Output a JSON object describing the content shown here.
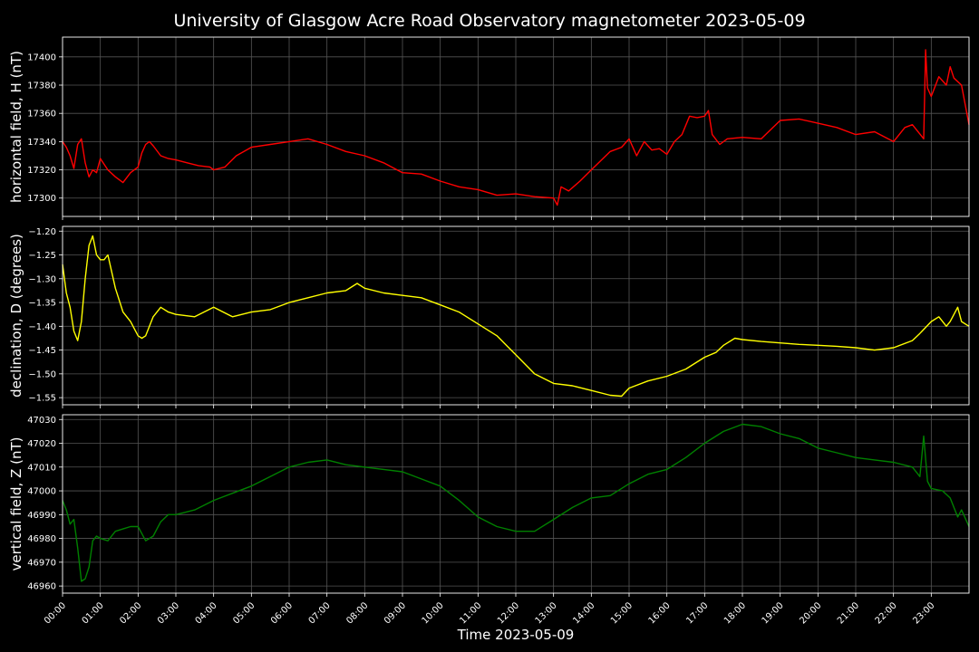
{
  "chart_data": {
    "type": "line",
    "title": "University of Glasgow Acre Road Observatory magnetometer 2023-05-09",
    "xlabel": "Time 2023-05-09",
    "x_ticks": [
      "00:00",
      "01:00",
      "02:00",
      "03:00",
      "04:00",
      "05:00",
      "06:00",
      "07:00",
      "08:00",
      "09:00",
      "10:00",
      "11:00",
      "12:00",
      "13:00",
      "14:00",
      "15:00",
      "16:00",
      "17:00",
      "18:00",
      "19:00",
      "20:00",
      "21:00",
      "22:00",
      "23:00"
    ],
    "xlim_hours": [
      0,
      24
    ],
    "grid": true,
    "background": "#000000",
    "panels": [
      {
        "ylabel": "horizontal field, H (nT)",
        "color": "#ff0000",
        "ylim": [
          17287,
          17414
        ],
        "yticks": [
          "17300",
          "17320",
          "17340",
          "17360",
          "17380",
          "17400"
        ],
        "ytick_values": [
          17300,
          17320,
          17340,
          17360,
          17380,
          17400
        ],
        "series": {
          "x": [
            0,
            0.1,
            0.2,
            0.3,
            0.4,
            0.5,
            0.6,
            0.7,
            0.8,
            0.9,
            1.0,
            1.2,
            1.4,
            1.6,
            1.8,
            2.0,
            2.1,
            2.2,
            2.3,
            2.4,
            2.6,
            2.8,
            3.0,
            3.3,
            3.6,
            3.9,
            4.0,
            4.3,
            4.6,
            5.0,
            5.5,
            6.0,
            6.5,
            7.0,
            7.5,
            8.0,
            8.5,
            9.0,
            9.5,
            10.0,
            10.5,
            11.0,
            11.5,
            12.0,
            12.5,
            13.0,
            13.1,
            13.2,
            13.4,
            13.7,
            14.0,
            14.5,
            14.8,
            15.0,
            15.2,
            15.4,
            15.6,
            15.8,
            16.0,
            16.2,
            16.4,
            16.6,
            16.8,
            17.0,
            17.1,
            17.2,
            17.4,
            17.6,
            18.0,
            18.5,
            19.0,
            19.5,
            20.0,
            20.5,
            21.0,
            21.5,
            22.0,
            22.3,
            22.5,
            22.8,
            22.85,
            22.9,
            23.0,
            23.2,
            23.4,
            23.5,
            23.6,
            23.8,
            24.0
          ],
          "values": [
            17340,
            17336,
            17330,
            17321,
            17338,
            17342,
            17325,
            17315,
            17320,
            17318,
            17328,
            17320,
            17315,
            17311,
            17318,
            17322,
            17332,
            17338,
            17340,
            17337,
            17330,
            17328,
            17327,
            17325,
            17323,
            17322,
            17320,
            17322,
            17330,
            17336,
            17338,
            17340,
            17342,
            17338,
            17333,
            17330,
            17325,
            17318,
            17317,
            17312,
            17308,
            17306,
            17302,
            17303,
            17301,
            17300,
            17295,
            17308,
            17305,
            17312,
            17320,
            17333,
            17336,
            17342,
            17330,
            17340,
            17334,
            17335,
            17331,
            17340,
            17345,
            17358,
            17357,
            17358,
            17362,
            17345,
            17338,
            17342,
            17343,
            17342,
            17355,
            17356,
            17353,
            17350,
            17345,
            17347,
            17340,
            17350,
            17352,
            17342,
            17405,
            17378,
            17372,
            17386,
            17380,
            17393,
            17385,
            17380,
            17352
          ]
        }
      },
      {
        "ylabel": "declination, D (degrees)",
        "color": "#ffff00",
        "ylim": [
          -1.565,
          -1.19
        ],
        "yticks": [
          "−1.55",
          "−1.50",
          "−1.45",
          "−1.40",
          "−1.35",
          "−1.30",
          "−1.25",
          "−1.20"
        ],
        "ytick_values": [
          -1.55,
          -1.5,
          -1.45,
          -1.4,
          -1.35,
          -1.3,
          -1.25,
          -1.2
        ],
        "series": {
          "x": [
            0,
            0.1,
            0.2,
            0.3,
            0.4,
            0.5,
            0.6,
            0.7,
            0.8,
            0.9,
            1.0,
            1.1,
            1.2,
            1.4,
            1.6,
            1.8,
            2.0,
            2.1,
            2.2,
            2.4,
            2.6,
            2.8,
            3.0,
            3.5,
            4.0,
            4.5,
            5.0,
            5.5,
            6.0,
            6.5,
            7.0,
            7.5,
            7.8,
            8.0,
            8.5,
            9.0,
            9.5,
            10.0,
            10.5,
            11.0,
            11.5,
            12.0,
            12.5,
            13.0,
            13.5,
            14.0,
            14.5,
            14.8,
            15.0,
            15.5,
            16.0,
            16.5,
            17.0,
            17.3,
            17.5,
            17.8,
            18.0,
            18.5,
            19.0,
            19.5,
            20.0,
            20.5,
            21.0,
            21.5,
            22.0,
            22.5,
            22.7,
            23.0,
            23.2,
            23.4,
            23.5,
            23.7,
            23.8,
            24.0
          ],
          "values": [
            -1.27,
            -1.33,
            -1.36,
            -1.41,
            -1.43,
            -1.39,
            -1.3,
            -1.23,
            -1.21,
            -1.25,
            -1.26,
            -1.26,
            -1.25,
            -1.32,
            -1.37,
            -1.39,
            -1.42,
            -1.425,
            -1.42,
            -1.38,
            -1.36,
            -1.37,
            -1.375,
            -1.38,
            -1.36,
            -1.38,
            -1.37,
            -1.365,
            -1.35,
            -1.34,
            -1.33,
            -1.325,
            -1.31,
            -1.32,
            -1.33,
            -1.335,
            -1.34,
            -1.355,
            -1.37,
            -1.395,
            -1.42,
            -1.46,
            -1.5,
            -1.52,
            -1.525,
            -1.535,
            -1.545,
            -1.547,
            -1.53,
            -1.515,
            -1.505,
            -1.49,
            -1.465,
            -1.455,
            -1.44,
            -1.425,
            -1.428,
            -1.432,
            -1.435,
            -1.438,
            -1.44,
            -1.442,
            -1.445,
            -1.45,
            -1.445,
            -1.43,
            -1.415,
            -1.39,
            -1.38,
            -1.4,
            -1.39,
            -1.36,
            -1.39,
            -1.4
          ]
        }
      },
      {
        "ylabel": "vertical field, Z (nT)",
        "color": "#008000",
        "ylim": [
          46957,
          47032
        ],
        "yticks": [
          "46960",
          "46970",
          "46980",
          "46990",
          "47000",
          "47010",
          "47020",
          "47030"
        ],
        "ytick_values": [
          46960,
          46970,
          46980,
          46990,
          47000,
          47010,
          47020,
          47030
        ],
        "series": {
          "x": [
            0,
            0.1,
            0.2,
            0.3,
            0.4,
            0.5,
            0.6,
            0.7,
            0.8,
            0.9,
            1.0,
            1.2,
            1.4,
            1.6,
            1.8,
            2.0,
            2.1,
            2.2,
            2.4,
            2.6,
            2.8,
            3.0,
            3.5,
            4.0,
            4.5,
            5.0,
            5.5,
            6.0,
            6.5,
            7.0,
            7.5,
            8.0,
            8.5,
            9.0,
            9.5,
            10.0,
            10.5,
            11.0,
            11.5,
            12.0,
            12.5,
            13.0,
            13.5,
            14.0,
            14.5,
            15.0,
            15.5,
            16.0,
            16.5,
            17.0,
            17.5,
            18.0,
            18.5,
            19.0,
            19.5,
            20.0,
            20.5,
            21.0,
            21.5,
            22.0,
            22.5,
            22.7,
            22.8,
            22.9,
            23.0,
            23.3,
            23.5,
            23.7,
            23.8,
            24.0
          ],
          "values": [
            46996,
            46992,
            46986,
            46988,
            46976,
            46962,
            46963,
            46968,
            46979,
            46981,
            46980,
            46979,
            46983,
            46984,
            46985,
            46985,
            46982,
            46979,
            46981,
            46987,
            46990,
            46990,
            46992,
            46996,
            46999,
            47002,
            47006,
            47010,
            47012,
            47013,
            47011,
            47010,
            47009,
            47008,
            47005,
            47002,
            46996,
            46989,
            46985,
            46983,
            46983,
            46988,
            46993,
            46997,
            46998,
            47003,
            47007,
            47009,
            47014,
            47020,
            47025,
            47028,
            47027,
            47024,
            47022,
            47018,
            47016,
            47014,
            47013,
            47012,
            47010,
            47006,
            47023,
            47004,
            47001,
            47000,
            46997,
            46989,
            46992,
            46985
          ]
        }
      }
    ]
  }
}
